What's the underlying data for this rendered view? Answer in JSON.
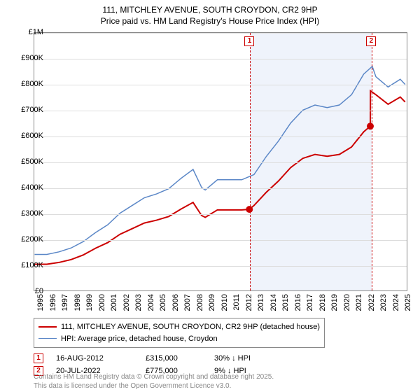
{
  "title_line1": "111, MITCHLEY AVENUE, SOUTH CROYDON, CR2 9HP",
  "title_line2": "Price paid vs. HM Land Registry's House Price Index (HPI)",
  "chart": {
    "type": "line",
    "background_color": "#ffffff",
    "grid_color": "#dddddd",
    "axis_color": "#888888",
    "ylim": [
      0,
      1000000
    ],
    "ytick_step": 100000,
    "y_ticks_labels": [
      "£0",
      "£100K",
      "£200K",
      "£300K",
      "£400K",
      "£500K",
      "£600K",
      "£700K",
      "£800K",
      "£900K",
      "£1M"
    ],
    "x_years": [
      1995,
      1996,
      1997,
      1998,
      1999,
      2000,
      2001,
      2002,
      2003,
      2004,
      2005,
      2006,
      2007,
      2008,
      2009,
      2010,
      2011,
      2012,
      2013,
      2014,
      2015,
      2016,
      2017,
      2018,
      2019,
      2020,
      2021,
      2022,
      2023,
      2024,
      2025
    ],
    "xlim": [
      1995,
      2025.5
    ],
    "shade": {
      "from": 2012.62,
      "to": 2022.55,
      "color": "rgba(120,160,220,0.12)"
    },
    "series": {
      "hpi": {
        "label": "HPI: Average price, detached house, Croydon",
        "color": "#5b87c7",
        "line_width": 1.5,
        "points": [
          [
            1995,
            140000
          ],
          [
            1996,
            140000
          ],
          [
            1997,
            150000
          ],
          [
            1998,
            165000
          ],
          [
            1999,
            190000
          ],
          [
            2000,
            225000
          ],
          [
            2001,
            255000
          ],
          [
            2002,
            300000
          ],
          [
            2003,
            330000
          ],
          [
            2004,
            360000
          ],
          [
            2005,
            375000
          ],
          [
            2006,
            395000
          ],
          [
            2007,
            435000
          ],
          [
            2008,
            470000
          ],
          [
            2008.7,
            400000
          ],
          [
            2009,
            390000
          ],
          [
            2010,
            430000
          ],
          [
            2011,
            430000
          ],
          [
            2012,
            430000
          ],
          [
            2013,
            450000
          ],
          [
            2014,
            520000
          ],
          [
            2015,
            580000
          ],
          [
            2016,
            650000
          ],
          [
            2017,
            700000
          ],
          [
            2018,
            720000
          ],
          [
            2019,
            710000
          ],
          [
            2020,
            720000
          ],
          [
            2021,
            760000
          ],
          [
            2022,
            840000
          ],
          [
            2022.7,
            870000
          ],
          [
            2023,
            830000
          ],
          [
            2024,
            790000
          ],
          [
            2025,
            820000
          ],
          [
            2025.4,
            800000
          ]
        ]
      },
      "paid": {
        "label": "111, MITCHLEY AVENUE, SOUTH CROYDON, CR2 9HP (detached house)",
        "color": "#cc0000",
        "line_width": 2,
        "points": [
          [
            1995,
            102000
          ],
          [
            1996,
            102000
          ],
          [
            1997,
            109000
          ],
          [
            1998,
            120000
          ],
          [
            1999,
            138000
          ],
          [
            2000,
            164000
          ],
          [
            2001,
            186000
          ],
          [
            2002,
            218000
          ],
          [
            2003,
            240000
          ],
          [
            2004,
            262000
          ],
          [
            2005,
            273000
          ],
          [
            2006,
            287000
          ],
          [
            2007,
            316000
          ],
          [
            2008,
            342000
          ],
          [
            2008.7,
            291000
          ],
          [
            2009,
            284000
          ],
          [
            2010,
            313000
          ],
          [
            2011,
            313000
          ],
          [
            2012,
            313000
          ],
          [
            2012.62,
            315000
          ],
          [
            2013,
            330000
          ],
          [
            2014,
            381000
          ],
          [
            2015,
            425000
          ],
          [
            2016,
            477000
          ],
          [
            2017,
            513000
          ],
          [
            2018,
            528000
          ],
          [
            2019,
            521000
          ],
          [
            2020,
            528000
          ],
          [
            2021,
            557000
          ],
          [
            2022,
            616000
          ],
          [
            2022.54,
            638000
          ],
          [
            2022.55,
            775000
          ],
          [
            2023,
            760000
          ],
          [
            2024,
            723000
          ],
          [
            2025,
            751000
          ],
          [
            2025.4,
            732000
          ]
        ],
        "markers": [
          {
            "at": 2012.62,
            "style": "circle",
            "size": 5,
            "fill": "#cc0000"
          },
          {
            "at": 2022.55,
            "style": "circle",
            "size": 5,
            "fill": "#cc0000"
          }
        ]
      }
    },
    "vlines": [
      {
        "x": 2012.62,
        "color": "#cc0000",
        "dash": "4,3",
        "label": "1"
      },
      {
        "x": 2022.55,
        "color": "#cc0000",
        "dash": "4,3",
        "label": "2"
      }
    ]
  },
  "legend": {
    "rows": [
      {
        "color": "#cc0000",
        "width": 2,
        "label_key": "chart.series.paid.label"
      },
      {
        "color": "#5b87c7",
        "width": 1.5,
        "label_key": "chart.series.hpi.label"
      }
    ]
  },
  "transactions": [
    {
      "n": "1",
      "date": "16-AUG-2012",
      "price": "£315,000",
      "diff": "30% ↓ HPI"
    },
    {
      "n": "2",
      "date": "20-JUL-2022",
      "price": "£775,000",
      "diff": "9% ↓ HPI"
    }
  ],
  "attribution_line1": "Contains HM Land Registry data © Crown copyright and database right 2025.",
  "attribution_line2": "This data is licensed under the Open Government Licence v3.0."
}
